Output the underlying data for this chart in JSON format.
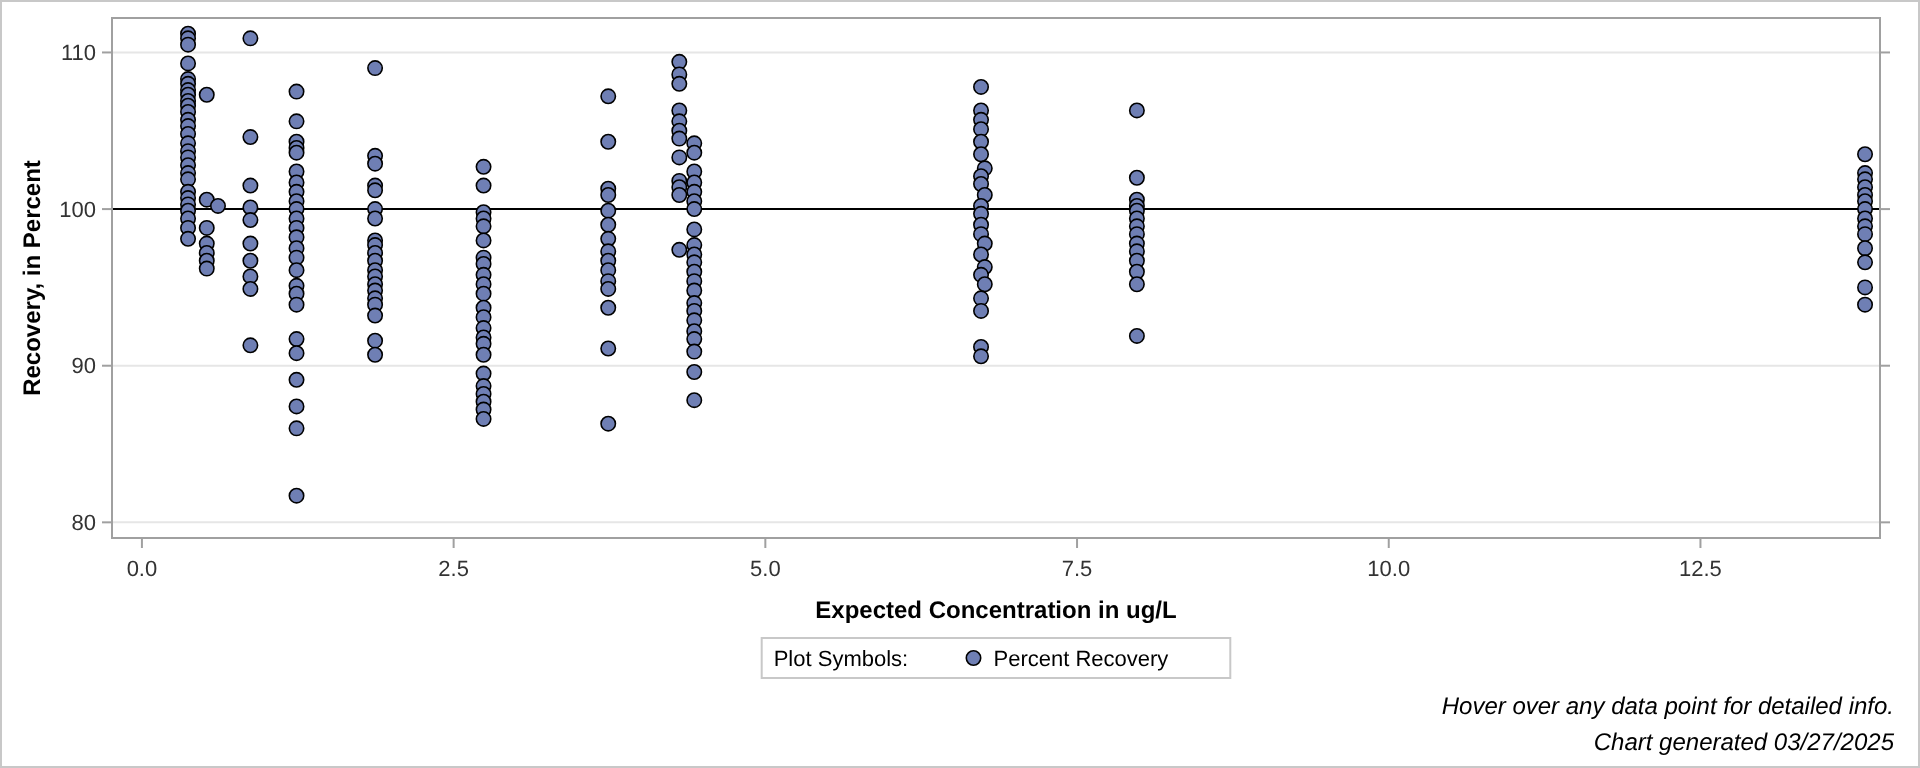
{
  "chart_data": {
    "type": "scatter",
    "xlabel": "Expected Concentration in ug/L",
    "ylabel": "Recovery, in Percent",
    "xlim": [
      -0.24,
      13.94
    ],
    "ylim": [
      79,
      112.2
    ],
    "xticks": [
      {
        "value": 0,
        "label": "0.0"
      },
      {
        "value": 2.5,
        "label": "2.5"
      },
      {
        "value": 5,
        "label": "5.0"
      },
      {
        "value": 7.5,
        "label": "7.5"
      },
      {
        "value": 10,
        "label": "10.0"
      },
      {
        "value": 12.5,
        "label": "12.5"
      }
    ],
    "yticks": [
      80,
      90,
      100,
      110
    ],
    "grid": "y",
    "marker": "circle",
    "legend": "bottom",
    "legend_title": "Plot Symbols:",
    "ref_lines": [
      {
        "axis": "y",
        "value": 100,
        "color": "#000000"
      }
    ],
    "annotations": [
      "Hover over any data point for detailed info.",
      "Chart generated 03/27/2025"
    ],
    "series": [
      {
        "name": "Percent Recovery",
        "color": "#6f7fb4",
        "x": [
          0.37,
          0.37,
          0.37,
          0.37,
          0.37,
          0.37,
          0.37,
          0.37,
          0.37,
          0.37,
          0.37,
          0.37,
          0.37,
          0.37,
          0.37,
          0.37,
          0.37,
          0.37,
          0.37,
          0.37,
          0.37,
          0.37,
          0.37,
          0.37,
          0.37,
          0.37,
          0.37,
          0.52,
          0.52,
          0.52,
          0.52,
          0.52,
          0.52,
          0.52,
          0.61,
          0.87,
          0.87,
          0.87,
          0.87,
          0.87,
          0.87,
          0.87,
          0.87,
          0.87,
          0.87,
          1.24,
          1.24,
          1.24,
          1.24,
          1.24,
          1.24,
          1.24,
          1.24,
          1.24,
          1.24,
          1.24,
          1.24,
          1.24,
          1.24,
          1.24,
          1.24,
          1.24,
          1.24,
          1.24,
          1.24,
          1.24,
          1.24,
          1.24,
          1.24,
          1.24,
          1.87,
          1.87,
          1.87,
          1.87,
          1.87,
          1.87,
          1.87,
          1.87,
          1.87,
          1.87,
          1.87,
          1.87,
          1.87,
          1.87,
          1.87,
          1.87,
          1.87,
          1.87,
          1.87,
          1.87,
          2.74,
          2.74,
          2.74,
          2.74,
          2.74,
          2.74,
          2.74,
          2.74,
          2.74,
          2.74,
          2.74,
          2.74,
          2.74,
          2.74,
          2.74,
          2.74,
          2.74,
          2.74,
          2.74,
          2.74,
          2.74,
          2.74,
          2.74,
          3.74,
          3.74,
          3.74,
          3.74,
          3.74,
          3.74,
          3.74,
          3.74,
          3.74,
          3.74,
          3.74,
          3.74,
          3.74,
          3.74,
          3.74,
          4.31,
          4.31,
          4.31,
          4.31,
          4.31,
          4.31,
          4.31,
          4.31,
          4.31,
          4.31,
          4.31,
          4.31,
          4.43,
          4.43,
          4.43,
          4.43,
          4.43,
          4.43,
          4.43,
          4.43,
          4.43,
          4.43,
          4.43,
          4.43,
          4.43,
          4.43,
          4.43,
          4.43,
          4.43,
          4.43,
          4.43,
          4.43,
          4.43,
          4.43,
          6.73,
          6.73,
          6.73,
          6.73,
          6.73,
          6.73,
          6.76,
          6.73,
          6.73,
          6.76,
          6.73,
          6.73,
          6.73,
          6.73,
          6.76,
          6.73,
          6.76,
          6.73,
          6.76,
          6.73,
          6.73,
          6.73,
          6.73,
          7.98,
          7.98,
          7.98,
          7.98,
          7.98,
          7.98,
          7.98,
          7.98,
          7.98,
          7.98,
          7.98,
          7.98,
          7.98,
          7.98,
          13.82,
          13.82,
          13.82,
          13.82,
          13.82,
          13.82,
          13.82,
          13.82,
          13.82,
          13.82,
          13.82,
          13.82,
          13.82,
          13.82
        ],
        "values": [
          111.2,
          110.9,
          110.5,
          109.3,
          108.3,
          108.0,
          107.6,
          107.3,
          106.9,
          106.6,
          106.2,
          105.7,
          105.3,
          104.8,
          104.2,
          103.7,
          103.3,
          102.8,
          102.3,
          101.9,
          101.1,
          100.7,
          100.3,
          99.9,
          99.4,
          98.8,
          98.1,
          107.3,
          100.6,
          98.8,
          97.8,
          97.2,
          96.7,
          96.2,
          100.2,
          110.9,
          104.6,
          101.5,
          100.1,
          99.3,
          97.8,
          96.7,
          95.7,
          94.9,
          91.3,
          107.5,
          105.6,
          104.3,
          103.9,
          103.6,
          102.4,
          101.7,
          101.1,
          100.5,
          100.0,
          99.4,
          98.8,
          98.2,
          97.5,
          96.9,
          96.1,
          95.1,
          94.6,
          93.9,
          91.7,
          90.8,
          89.1,
          87.4,
          86.0,
          81.7,
          109.0,
          103.4,
          102.9,
          101.5,
          101.2,
          100.0,
          99.4,
          98.0,
          97.7,
          97.2,
          96.7,
          96.1,
          95.7,
          95.2,
          94.8,
          94.3,
          93.9,
          93.2,
          91.6,
          90.7,
          102.7,
          101.5,
          99.8,
          99.4,
          98.9,
          98.0,
          96.9,
          96.5,
          95.8,
          95.2,
          94.6,
          93.7,
          93.1,
          92.4,
          91.8,
          91.4,
          90.7,
          89.5,
          88.7,
          88.2,
          87.7,
          87.2,
          86.6,
          107.2,
          104.3,
          101.3,
          100.9,
          99.9,
          99.0,
          98.1,
          97.3,
          96.7,
          96.1,
          95.4,
          94.9,
          93.7,
          91.1,
          86.3,
          109.4,
          108.6,
          108.0,
          106.3,
          105.6,
          105.0,
          104.5,
          103.3,
          101.8,
          101.4,
          100.9,
          97.4,
          104.2,
          103.6,
          102.4,
          101.7,
          101.1,
          100.5,
          100.0,
          98.7,
          97.7,
          97.1,
          96.6,
          96.0,
          95.4,
          94.8,
          94.0,
          93.5,
          92.9,
          92.2,
          91.7,
          90.9,
          89.6,
          87.8,
          107.8,
          106.3,
          105.7,
          105.1,
          104.3,
          103.5,
          102.6,
          102.1,
          101.6,
          100.9,
          100.2,
          99.7,
          99.0,
          98.4,
          97.8,
          97.1,
          96.3,
          95.8,
          95.2,
          94.3,
          93.5,
          91.2,
          90.6,
          106.3,
          102.0,
          100.6,
          100.2,
          99.9,
          99.4,
          98.9,
          98.4,
          97.8,
          97.3,
          96.7,
          96.0,
          95.2,
          91.9,
          103.5,
          102.3,
          101.9,
          101.4,
          100.9,
          100.5,
          100.0,
          99.4,
          98.9,
          98.4,
          97.5,
          96.6,
          95.0,
          93.9
        ]
      }
    ]
  }
}
